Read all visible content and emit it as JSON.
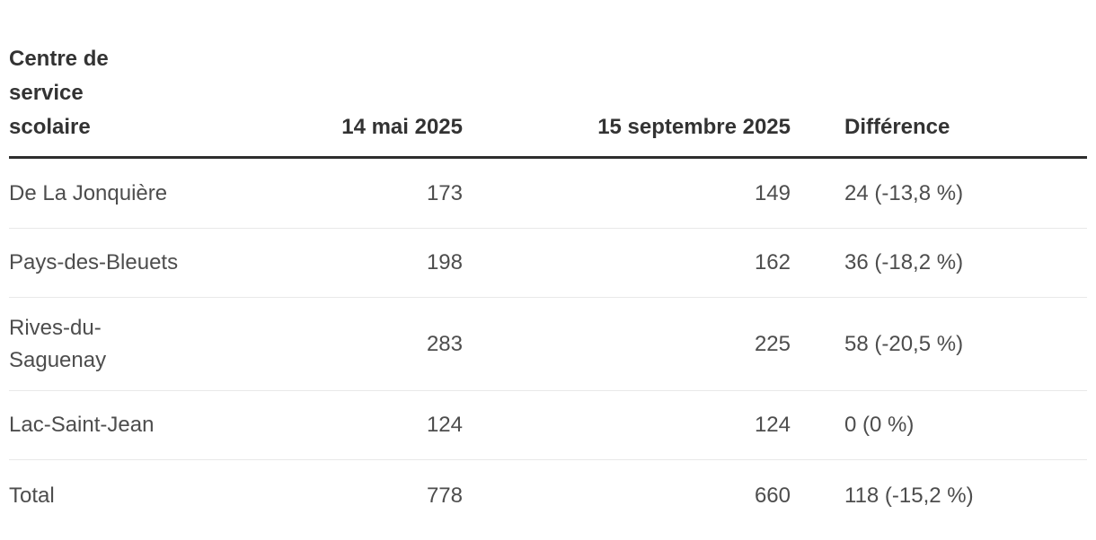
{
  "chart_data": {
    "type": "table",
    "columns": [
      "Centre de service scolaire",
      "14 mai 2025",
      "15 septembre 2025",
      "Différence"
    ],
    "rows": [
      {
        "centre_de_service_scolaire": "De La Jonquière",
        "mai_14_2025": 173,
        "septembre_15_2025": 149,
        "difference": "24 (-13,8 %)"
      },
      {
        "centre_de_service_scolaire": "Pays-des-Bleuets",
        "mai_14_2025": 198,
        "septembre_15_2025": 162,
        "difference": "36 (-18,2 %)"
      },
      {
        "centre_de_service_scolaire": "Rives-du-Saguenay",
        "mai_14_2025": 283,
        "septembre_15_2025": 225,
        "difference": "58 (-20,5 %)"
      },
      {
        "centre_de_service_scolaire": "Lac-Saint-Jean",
        "mai_14_2025": 124,
        "septembre_15_2025": 124,
        "difference": "0 (0 %)"
      },
      {
        "centre_de_service_scolaire": "Total",
        "mai_14_2025": 778,
        "septembre_15_2025": 660,
        "difference": "118 (-15,2 %)"
      }
    ]
  },
  "table": {
    "header": {
      "centre": "Centre de\nservice\nscolaire",
      "mai": "14 mai 2025",
      "septembre": "15 septembre 2025",
      "difference": "Différence"
    },
    "rows": [
      {
        "name": "De La Jonquière",
        "mai": "173",
        "septembre": "149",
        "difference": "24 (-13,8 %)"
      },
      {
        "name": "Pays-des-Bleuets",
        "mai": "198",
        "septembre": "162",
        "difference": "36 (-18,2 %)"
      },
      {
        "name": "Rives-du-\nSaguenay",
        "mai": "283",
        "septembre": "225",
        "difference": "58 (-20,5 %)"
      },
      {
        "name": "Lac-Saint-Jean",
        "mai": "124",
        "septembre": "124",
        "difference": "0 (0 %)"
      },
      {
        "name": "Total",
        "mai": "778",
        "septembre": "660",
        "difference": "118 (-15,2 %)"
      }
    ],
    "colors": {
      "header_text": "#333333",
      "body_text": "#4d4d4d",
      "header_border": "#2e2e2e",
      "row_separator": "#e9e9e9",
      "background": "#ffffff"
    }
  }
}
